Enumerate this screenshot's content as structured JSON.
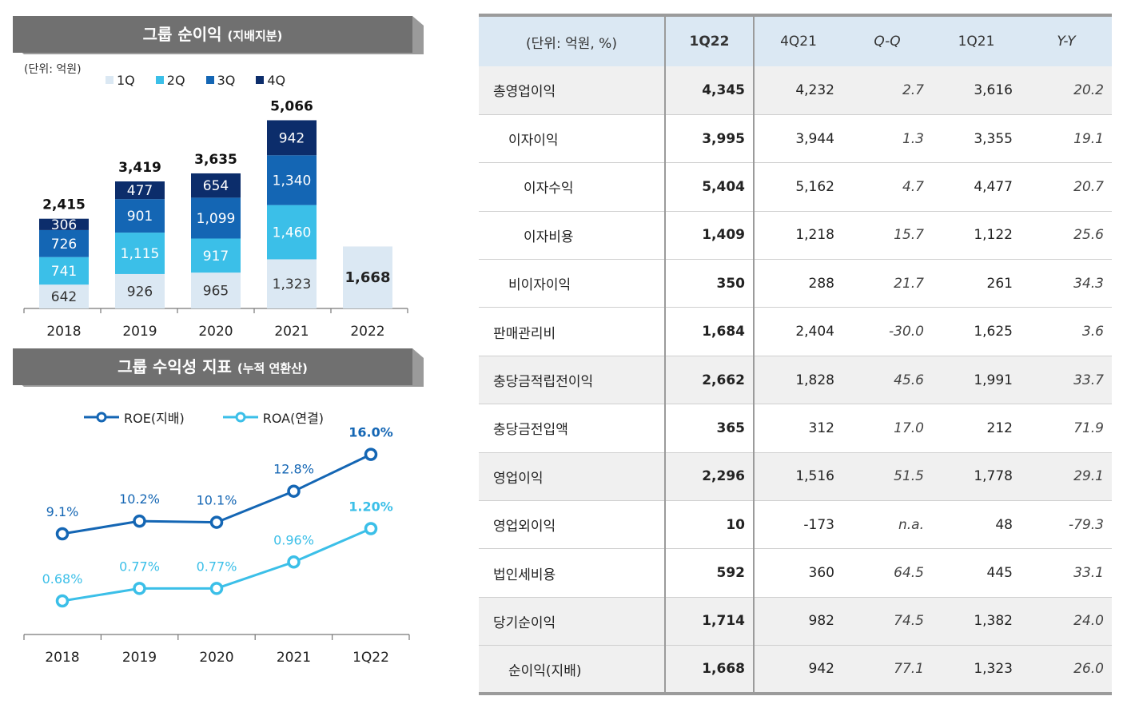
{
  "top_panel": {
    "title": "그룹 순이익",
    "title_sub": "(지배지분)",
    "unit": "(단위: 억원)"
  },
  "bottom_panel": {
    "title": "그룹 수익성 지표",
    "title_sub": "(누적 연환산)"
  },
  "colors": {
    "banner": "#707070",
    "q1": "#dbe8f3",
    "q2": "#3bbfe8",
    "q3": "#1466b4",
    "q4": "#0c2d6b",
    "roe": "#1466b4",
    "roa": "#3bbfe8",
    "header_bg": "#dbe8f3",
    "row_shade": "#f0f0f0"
  },
  "chart_data": [
    {
      "type": "bar",
      "stacked": true,
      "categories": [
        "2018",
        "2019",
        "2020",
        "2021",
        "2022"
      ],
      "series": [
        {
          "name": "1Q",
          "values": [
            642,
            926,
            965,
            1323,
            1668
          ]
        },
        {
          "name": "2Q",
          "values": [
            741,
            1115,
            917,
            1460,
            null
          ]
        },
        {
          "name": "3Q",
          "values": [
            726,
            901,
            1099,
            1340,
            null
          ]
        },
        {
          "name": "4Q",
          "values": [
            306,
            477,
            654,
            942,
            null
          ]
        }
      ],
      "segment_labels": [
        [
          "642",
          "741",
          "726",
          "306"
        ],
        [
          "926",
          "1,115",
          "901",
          "477"
        ],
        [
          "965",
          "917",
          "1,099",
          "654"
        ],
        [
          "1,323",
          "1,460",
          "1,340",
          "942"
        ],
        [
          "1,668"
        ]
      ],
      "totals": [
        2415,
        3419,
        3635,
        5066,
        null
      ],
      "total_labels": [
        "2,415",
        "3,419",
        "3,635",
        "5,066",
        ""
      ],
      "ylim": [
        0,
        5500
      ],
      "legend_position": "top-left",
      "grid": false
    },
    {
      "type": "line",
      "categories": [
        "2018",
        "2019",
        "2020",
        "2021",
        "1Q22"
      ],
      "series": [
        {
          "name": "ROE(지배)",
          "values": [
            9.1,
            10.2,
            10.1,
            12.8,
            16.0
          ],
          "labels": [
            "9.1%",
            "10.2%",
            "10.1%",
            "12.8%",
            "16.0%"
          ]
        },
        {
          "name": "ROA(연결)",
          "values": [
            0.68,
            0.77,
            0.77,
            0.96,
            1.2
          ],
          "labels": [
            "0.68%",
            "0.77%",
            "0.77%",
            "0.96%",
            "1.20%"
          ]
        }
      ],
      "legend_position": "top",
      "grid": false
    },
    {
      "type": "table",
      "columns": [
        "(단위: 억원, %)",
        "1Q22",
        "4Q21",
        "Q-Q",
        "1Q21",
        "Y-Y"
      ],
      "rows": [
        {
          "label": "총영업이익",
          "indent": 0,
          "shade": true,
          "cells": [
            "4,345",
            "4,232",
            "2.7",
            "3,616",
            "20.2"
          ]
        },
        {
          "label": "이자이익",
          "indent": 1,
          "shade": false,
          "cells": [
            "3,995",
            "3,944",
            "1.3",
            "3,355",
            "19.1"
          ]
        },
        {
          "label": "이자수익",
          "indent": 2,
          "shade": false,
          "cells": [
            "5,404",
            "5,162",
            "4.7",
            "4,477",
            "20.7"
          ]
        },
        {
          "label": "이자비용",
          "indent": 2,
          "shade": false,
          "cells": [
            "1,409",
            "1,218",
            "15.7",
            "1,122",
            "25.6"
          ]
        },
        {
          "label": "비이자이익",
          "indent": 1,
          "shade": false,
          "cells": [
            "350",
            "288",
            "21.7",
            "261",
            "34.3"
          ]
        },
        {
          "label": "판매관리비",
          "indent": 0,
          "shade": false,
          "cells": [
            "1,684",
            "2,404",
            "-30.0",
            "1,625",
            "3.6"
          ]
        },
        {
          "label": "충당금적립전이익",
          "indent": 0,
          "shade": true,
          "cells": [
            "2,662",
            "1,828",
            "45.6",
            "1,991",
            "33.7"
          ]
        },
        {
          "label": "충당금전입액",
          "indent": 0,
          "shade": false,
          "cells": [
            "365",
            "312",
            "17.0",
            "212",
            "71.9"
          ]
        },
        {
          "label": "영업이익",
          "indent": 0,
          "shade": true,
          "cells": [
            "2,296",
            "1,516",
            "51.5",
            "1,778",
            "29.1"
          ]
        },
        {
          "label": "영업외이익",
          "indent": 0,
          "shade": false,
          "cells": [
            "10",
            "-173",
            "n.a.",
            "48",
            "-79.3"
          ]
        },
        {
          "label": "법인세비용",
          "indent": 0,
          "shade": false,
          "cells": [
            "592",
            "360",
            "64.5",
            "445",
            "33.1"
          ]
        },
        {
          "label": "당기순이익",
          "indent": 0,
          "shade": true,
          "cells": [
            "1,714",
            "982",
            "74.5",
            "1,382",
            "24.0"
          ]
        },
        {
          "label": "순이익(지배)",
          "indent": 1,
          "shade": true,
          "cells": [
            "1,668",
            "942",
            "77.1",
            "1,323",
            "26.0"
          ]
        }
      ]
    }
  ]
}
